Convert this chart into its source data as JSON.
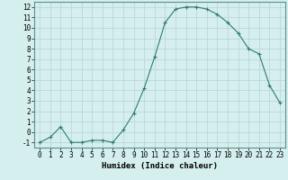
{
  "x": [
    0,
    1,
    2,
    3,
    4,
    5,
    6,
    7,
    8,
    9,
    10,
    11,
    12,
    13,
    14,
    15,
    16,
    17,
    18,
    19,
    20,
    21,
    22,
    23
  ],
  "y": [
    -1,
    -0.5,
    0.5,
    -1,
    -1,
    -0.8,
    -0.8,
    -1,
    0.2,
    1.8,
    4.2,
    7.2,
    10.5,
    11.8,
    12.0,
    12.0,
    11.8,
    11.3,
    10.5,
    9.5,
    8.0,
    7.5,
    4.5,
    2.8
  ],
  "line_color": "#2e7d6e",
  "marker": "+",
  "marker_size": 3,
  "marker_lw": 0.8,
  "bg_color": "#d5eeee",
  "grid_color": "#b8d4d4",
  "xlabel": "Humidex (Indice chaleur)",
  "xlim": [
    -0.5,
    23.5
  ],
  "ylim": [
    -1.5,
    12.5
  ],
  "yticks": [
    -1,
    0,
    1,
    2,
    3,
    4,
    5,
    6,
    7,
    8,
    9,
    10,
    11,
    12
  ],
  "xticks": [
    0,
    1,
    2,
    3,
    4,
    5,
    6,
    7,
    8,
    9,
    10,
    11,
    12,
    13,
    14,
    15,
    16,
    17,
    18,
    19,
    20,
    21,
    22,
    23
  ],
  "xlabel_fontsize": 6.5,
  "tick_fontsize": 5.5,
  "line_width": 0.8
}
